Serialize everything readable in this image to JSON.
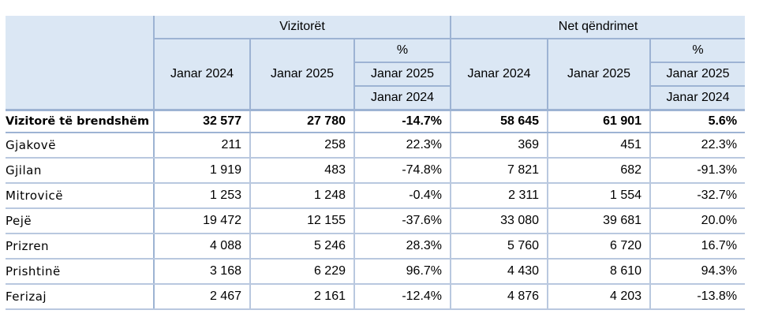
{
  "header": {
    "group1": "Vizitorët",
    "group2": "Net qëndrimet",
    "col_jan2024": "Janar 2024",
    "col_jan2025": "Janar 2025",
    "pct_symbol": "%",
    "pct_num": "Janar 2025",
    "pct_den": "Janar 2024"
  },
  "total": {
    "label": "Vizitorë të brendshëm",
    "values": [
      "32 577",
      "27 780",
      "-14.7%",
      "58 645",
      "61 901",
      "5.6%"
    ]
  },
  "rows": [
    {
      "label": "Gjakovë",
      "values": [
        "211",
        "258",
        "22.3%",
        "369",
        "451",
        "22.3%"
      ]
    },
    {
      "label": "Gjilan",
      "values": [
        "1 919",
        "483",
        "-74.8%",
        "7 821",
        "682",
        "-91.3%"
      ]
    },
    {
      "label": "Mitrovicë",
      "values": [
        "1 253",
        "1 248",
        "-0.4%",
        "2 311",
        "1 554",
        "-32.7%"
      ]
    },
    {
      "label": "Pejë",
      "values": [
        "19 472",
        "12 155",
        "-37.6%",
        "33 080",
        "39 681",
        "20.0%"
      ]
    },
    {
      "label": "Prizren",
      "values": [
        "4 088",
        "5 246",
        "28.3%",
        "5 760",
        "6 720",
        "16.7%"
      ]
    },
    {
      "label": "Prishtinë",
      "values": [
        "3 168",
        "6 229",
        "96.7%",
        "4 430",
        "8 610",
        "94.3%"
      ]
    },
    {
      "label": "Ferizaj",
      "values": [
        "2 467",
        "2 161",
        "-12.4%",
        "4 876",
        "4 203",
        "-13.8%"
      ]
    }
  ]
}
